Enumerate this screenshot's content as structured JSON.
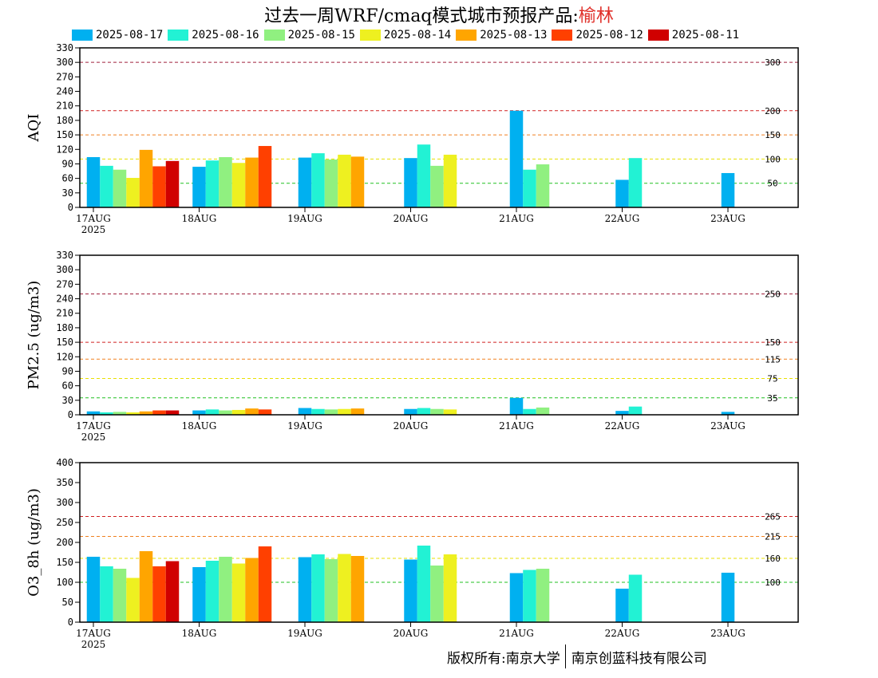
{
  "header": {
    "title_prefix": "过去一周WRF/cmaq模式城市预报产品:",
    "city": "榆林"
  },
  "legend": [
    {
      "label": "2025-08-17",
      "color": "#00b0f0"
    },
    {
      "label": "2025-08-16",
      "color": "#22f2d4"
    },
    {
      "label": "2025-08-15",
      "color": "#90f080"
    },
    {
      "label": "2025-08-14",
      "color": "#eef020"
    },
    {
      "label": "2025-08-13",
      "color": "#ffa500"
    },
    {
      "label": "2025-08-12",
      "color": "#ff4000"
    },
    {
      "label": "2025-08-11",
      "color": "#d00000"
    }
  ],
  "footer": {
    "left": "版权所有:南京大学",
    "right": "南京创蓝科技有限公司"
  },
  "chart_data": [
    {
      "type": "bar",
      "ylabel": "AQI",
      "ylim": [
        0,
        330
      ],
      "yticks": [
        0,
        30,
        60,
        90,
        120,
        150,
        180,
        210,
        240,
        270,
        300,
        330
      ],
      "categories": [
        "17AUG",
        "18AUG",
        "19AUG",
        "20AUG",
        "21AUG",
        "22AUG",
        "23AUG"
      ],
      "year_label": "2025",
      "thresholds": [
        {
          "value": 300,
          "label": "300",
          "color": "#a0203c"
        },
        {
          "value": 200,
          "label": "200",
          "color": "#d02020"
        },
        {
          "value": 150,
          "label": "150",
          "color": "#f08020"
        },
        {
          "value": 100,
          "label": "100",
          "color": "#e8e000"
        },
        {
          "value": 50,
          "label": "50",
          "color": "#20c020"
        }
      ],
      "series": [
        {
          "values": [
            104,
            84,
            103,
            102,
            200,
            57,
            71
          ]
        },
        {
          "values": [
            86,
            97,
            112,
            130,
            78,
            102,
            null
          ]
        },
        {
          "values": [
            78,
            104,
            99,
            86,
            89,
            null,
            null
          ]
        },
        {
          "values": [
            61,
            92,
            109,
            109,
            null,
            null,
            null
          ]
        },
        {
          "values": [
            119,
            103,
            105,
            null,
            null,
            null,
            null
          ]
        },
        {
          "values": [
            85,
            127,
            null,
            null,
            null,
            null,
            null
          ]
        },
        {
          "values": [
            96,
            null,
            null,
            null,
            null,
            null,
            null
          ]
        }
      ]
    },
    {
      "type": "bar",
      "ylabel": "PM2.5 (ug/m3)",
      "ylim": [
        0,
        330
      ],
      "yticks": [
        0,
        30,
        60,
        90,
        120,
        150,
        180,
        210,
        240,
        270,
        300,
        330
      ],
      "categories": [
        "17AUG",
        "18AUG",
        "19AUG",
        "20AUG",
        "21AUG",
        "22AUG",
        "23AUG"
      ],
      "year_label": "2025",
      "thresholds": [
        {
          "value": 250,
          "label": "250",
          "color": "#a0203c"
        },
        {
          "value": 150,
          "label": "150",
          "color": "#d02020"
        },
        {
          "value": 115,
          "label": "115",
          "color": "#f08020"
        },
        {
          "value": 75,
          "label": "75",
          "color": "#e8e000"
        },
        {
          "value": 35,
          "label": "35",
          "color": "#20c020"
        }
      ],
      "series": [
        {
          "values": [
            7,
            9,
            14,
            12,
            35,
            8,
            6
          ]
        },
        {
          "values": [
            5,
            11,
            12,
            14,
            12,
            17,
            null
          ]
        },
        {
          "values": [
            6,
            9,
            11,
            12,
            15,
            null,
            null
          ]
        },
        {
          "values": [
            5,
            10,
            12,
            11,
            null,
            null,
            null
          ]
        },
        {
          "values": [
            7,
            13,
            13,
            null,
            null,
            null,
            null
          ]
        },
        {
          "values": [
            9,
            11,
            null,
            null,
            null,
            null,
            null
          ]
        },
        {
          "values": [
            9,
            null,
            null,
            null,
            null,
            null,
            null
          ]
        }
      ]
    },
    {
      "type": "bar",
      "ylabel": "O3_8h (ug/m3)",
      "ylim": [
        0,
        400
      ],
      "yticks": [
        0,
        50,
        100,
        150,
        200,
        250,
        300,
        350,
        400
      ],
      "categories": [
        "17AUG",
        "18AUG",
        "19AUG",
        "20AUG",
        "21AUG",
        "22AUG",
        "23AUG"
      ],
      "year_label": "2025",
      "thresholds": [
        {
          "value": 265,
          "label": "265",
          "color": "#d02020"
        },
        {
          "value": 215,
          "label": "215",
          "color": "#f08020"
        },
        {
          "value": 160,
          "label": "160",
          "color": "#e8e000"
        },
        {
          "value": 100,
          "label": "100",
          "color": "#20c020"
        }
      ],
      "series": [
        {
          "values": [
            164,
            138,
            163,
            157,
            123,
            84,
            124
          ]
        },
        {
          "values": [
            140,
            154,
            170,
            192,
            131,
            119,
            null
          ]
        },
        {
          "values": [
            134,
            164,
            158,
            142,
            134,
            null,
            null
          ]
        },
        {
          "values": [
            111,
            147,
            171,
            170,
            null,
            null,
            null
          ]
        },
        {
          "values": [
            178,
            161,
            166,
            null,
            null,
            null,
            null
          ]
        },
        {
          "values": [
            140,
            190,
            null,
            null,
            null,
            null,
            null
          ]
        },
        {
          "values": [
            153,
            null,
            null,
            null,
            null,
            null,
            null
          ]
        }
      ]
    }
  ]
}
